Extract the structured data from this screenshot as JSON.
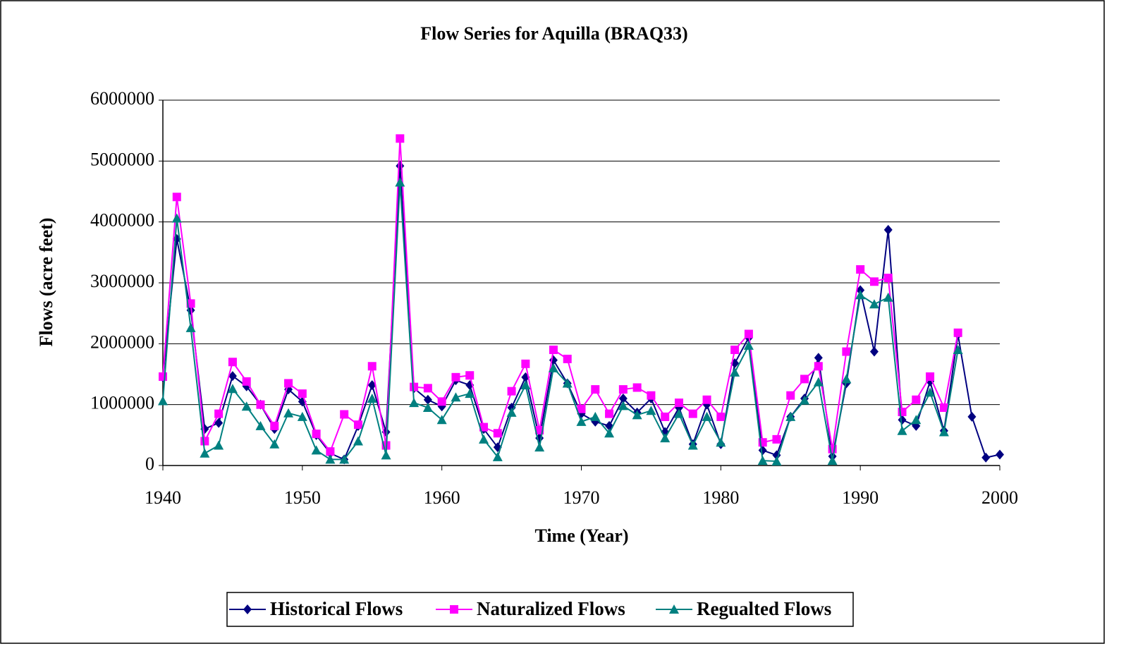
{
  "chart_data": {
    "type": "line",
    "title": "Flow Series for Aquilla (BRAQ33)",
    "xlabel": "Time (Year)",
    "ylabel": "Flows (acre feet)",
    "x": [
      1940,
      1941,
      1942,
      1943,
      1944,
      1945,
      1946,
      1947,
      1948,
      1949,
      1950,
      1951,
      1952,
      1953,
      1954,
      1955,
      1956,
      1957,
      1958,
      1959,
      1960,
      1961,
      1962,
      1963,
      1964,
      1965,
      1966,
      1967,
      1968,
      1969,
      1970,
      1971,
      1972,
      1973,
      1974,
      1975,
      1976,
      1977,
      1978,
      1979,
      1980,
      1981,
      1982,
      1983,
      1984,
      1985,
      1986,
      1987,
      1988,
      1989,
      1990,
      1991,
      1992,
      1993,
      1994,
      1995,
      1996,
      1997,
      1998,
      1999,
      2000
    ],
    "series": [
      {
        "name": "Historical Flows",
        "color": "#000080",
        "marker": "diamond",
        "values": [
          1450000,
          3720000,
          2550000,
          600000,
          700000,
          1470000,
          1300000,
          1000000,
          600000,
          1250000,
          1050000,
          500000,
          200000,
          100000,
          650000,
          1320000,
          550000,
          4920000,
          1270000,
          1080000,
          970000,
          1400000,
          1320000,
          600000,
          300000,
          950000,
          1450000,
          450000,
          1730000,
          1350000,
          850000,
          720000,
          650000,
          1100000,
          870000,
          1100000,
          550000,
          950000,
          350000,
          1000000,
          350000,
          1680000,
          2100000,
          250000,
          170000,
          800000,
          1100000,
          1770000,
          150000,
          1350000,
          2880000,
          1870000,
          3870000,
          750000,
          650000,
          1380000,
          570000,
          2150000,
          800000,
          130000,
          180000
        ]
      },
      {
        "name": "Naturalized Flows",
        "color": "#ff00ff",
        "marker": "square",
        "values": [
          1460000,
          4410000,
          2660000,
          400000,
          850000,
          1700000,
          1380000,
          1000000,
          650000,
          1350000,
          1180000,
          520000,
          230000,
          840000,
          670000,
          1630000,
          330000,
          5370000,
          1290000,
          1270000,
          1050000,
          1450000,
          1480000,
          630000,
          530000,
          1220000,
          1670000,
          580000,
          1900000,
          1750000,
          930000,
          1250000,
          850000,
          1250000,
          1280000,
          1150000,
          800000,
          1030000,
          850000,
          1080000,
          800000,
          1900000,
          2160000,
          380000,
          430000,
          1150000,
          1420000,
          1630000,
          270000,
          1870000,
          3220000,
          3020000,
          3080000,
          880000,
          1080000,
          1460000,
          950000,
          2180000,
          null,
          null,
          null
        ]
      },
      {
        "name": "Regualted Flows",
        "color": "#008080",
        "marker": "triangle",
        "values": [
          1060000,
          4060000,
          2260000,
          200000,
          330000,
          1260000,
          970000,
          650000,
          350000,
          860000,
          800000,
          250000,
          100000,
          100000,
          400000,
          1100000,
          170000,
          4650000,
          1030000,
          950000,
          750000,
          1120000,
          1180000,
          430000,
          140000,
          870000,
          1320000,
          300000,
          1600000,
          1350000,
          720000,
          800000,
          530000,
          980000,
          830000,
          900000,
          450000,
          850000,
          330000,
          800000,
          380000,
          1530000,
          1970000,
          80000,
          70000,
          800000,
          1070000,
          1370000,
          80000,
          1420000,
          2800000,
          2650000,
          2760000,
          570000,
          750000,
          1200000,
          550000,
          1900000,
          null,
          null,
          null
        ]
      }
    ],
    "xlim": [
      1940,
      2000
    ],
    "xticks": [
      1940,
      1950,
      1960,
      1970,
      1980,
      1990,
      2000
    ],
    "ylim": [
      0,
      6000000
    ],
    "yticks": [
      0,
      1000000,
      2000000,
      3000000,
      4000000,
      5000000,
      6000000
    ],
    "grid": true,
    "legend": "bottom"
  }
}
